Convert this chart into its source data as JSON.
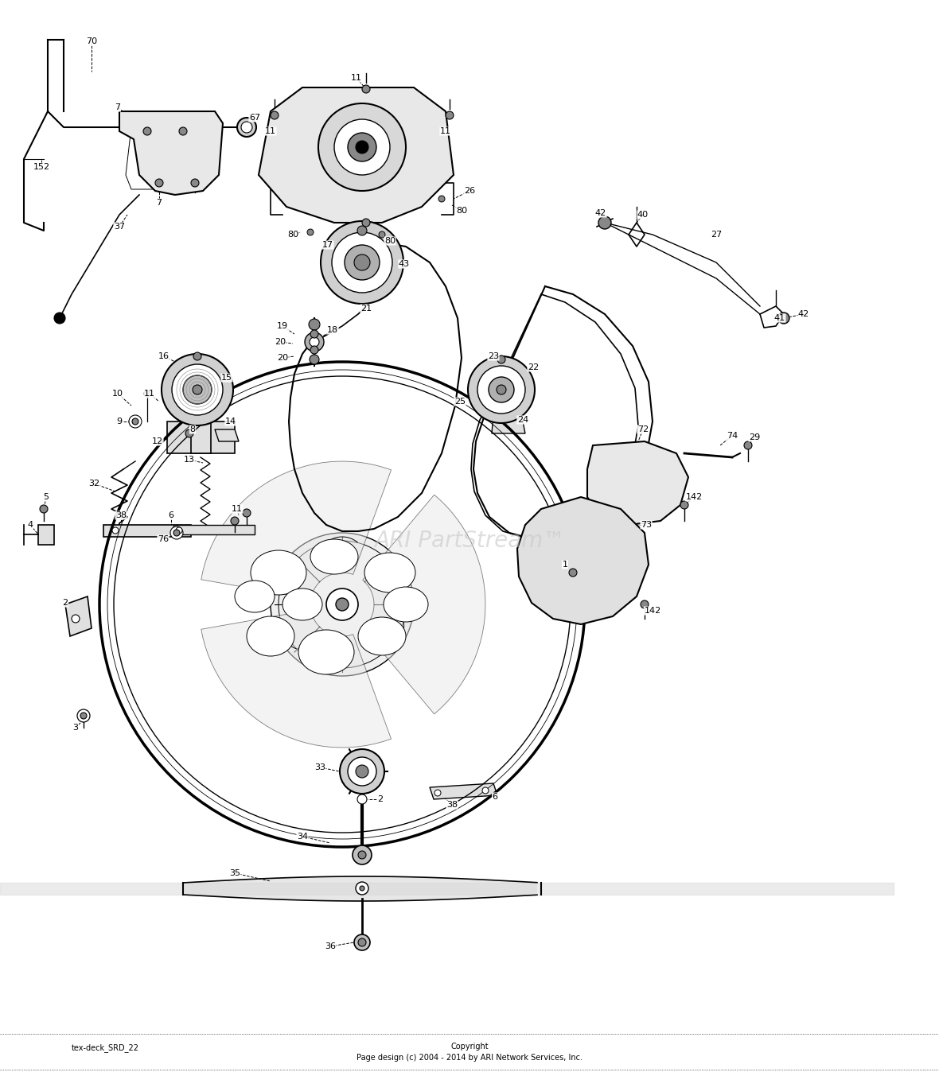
{
  "background_color": "#ffffff",
  "watermark": "ARI PartStream™",
  "watermark_color": "#c8c8c8",
  "bottom_label1": "tex-deck_SRD_22",
  "bottom_label2": "Copyright",
  "bottom_label3": "Page design (c) 2004 - 2014 by ARI Network Services, Inc.",
  "fig_w": 11.8,
  "fig_h": 13.53,
  "dpi": 100
}
